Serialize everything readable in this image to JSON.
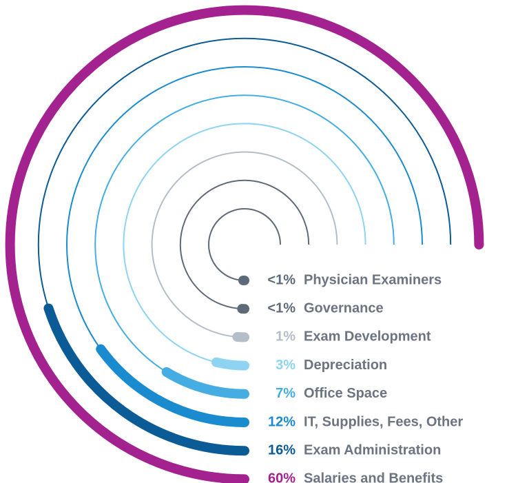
{
  "chart_data": {
    "type": "radial_bar",
    "categories": [
      "Physician Examiners",
      "Governance",
      "Exam Development",
      "Depreciation",
      "Office Space",
      "IT, Supplies, Fees, Other",
      "Exam Administration",
      "Salaries and Benefits"
    ],
    "values": [
      0.5,
      0.5,
      1,
      3,
      7,
      12,
      16,
      60
    ],
    "value_labels": [
      "<1%",
      "<1%",
      "1%",
      "3%",
      "7%",
      "12%",
      "16%",
      "60%"
    ],
    "colors": [
      "#5f6a78",
      "#5f6a78",
      "#b3bec8",
      "#8ed4f2",
      "#45ade2",
      "#1a8bcf",
      "#0b5b96",
      "#a3228f"
    ]
  }
}
